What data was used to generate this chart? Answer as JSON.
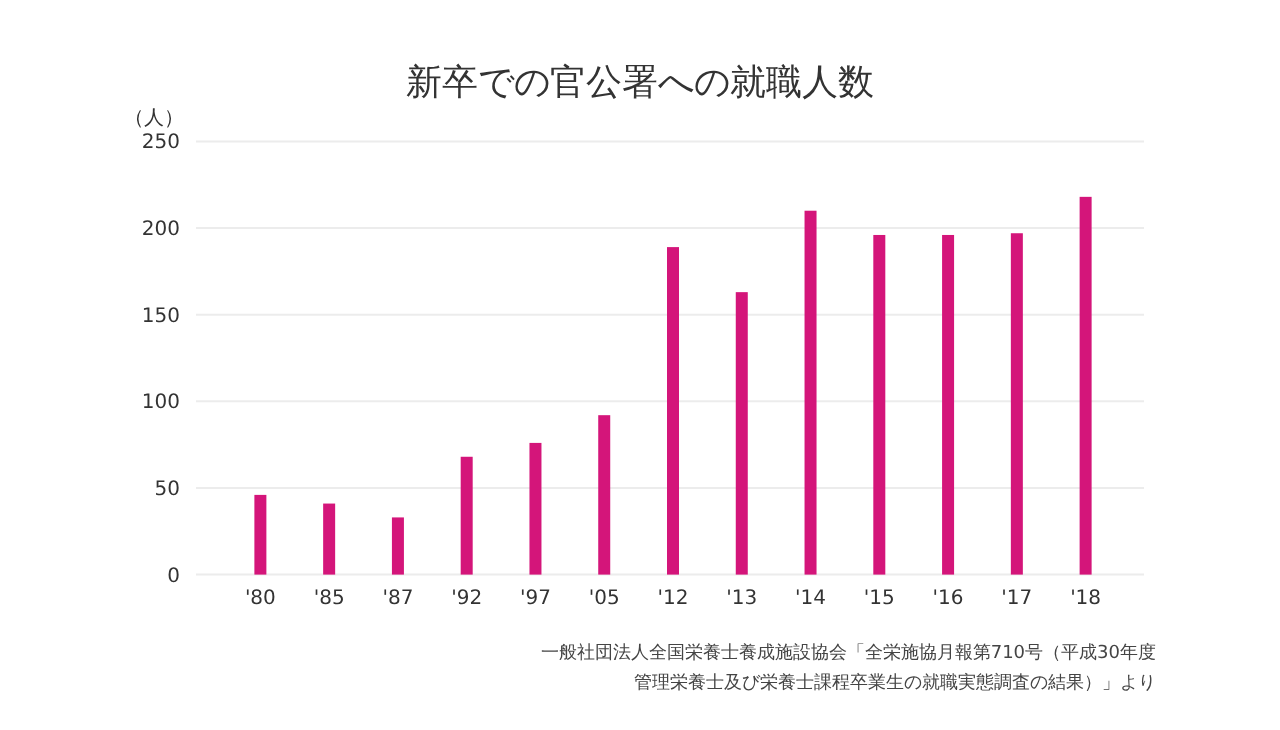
{
  "chart_data": {
    "type": "bar",
    "title": "新卒での官公署への就職人数",
    "ylabel": "（人）",
    "categories": [
      "'80",
      "'85",
      "'87",
      "'92",
      "'97",
      "'05",
      "'12",
      "'13",
      "'14",
      "'15",
      "'16",
      "'17",
      "'18"
    ],
    "values": [
      46,
      41,
      33,
      68,
      76,
      92,
      189,
      163,
      210,
      196,
      196,
      197,
      218
    ],
    "color": "#d4157a",
    "ylim": [
      0,
      250
    ],
    "yticks": [
      0,
      50,
      100,
      150,
      200,
      250
    ],
    "grid": "y",
    "annotations": [
      "一般社団法人全国栄養士養成施設協会「全栄施協月報第710号（平成30年度",
      "管理栄養士及び栄養士課程卒業生の就職実態調査の結果）」より"
    ]
  }
}
